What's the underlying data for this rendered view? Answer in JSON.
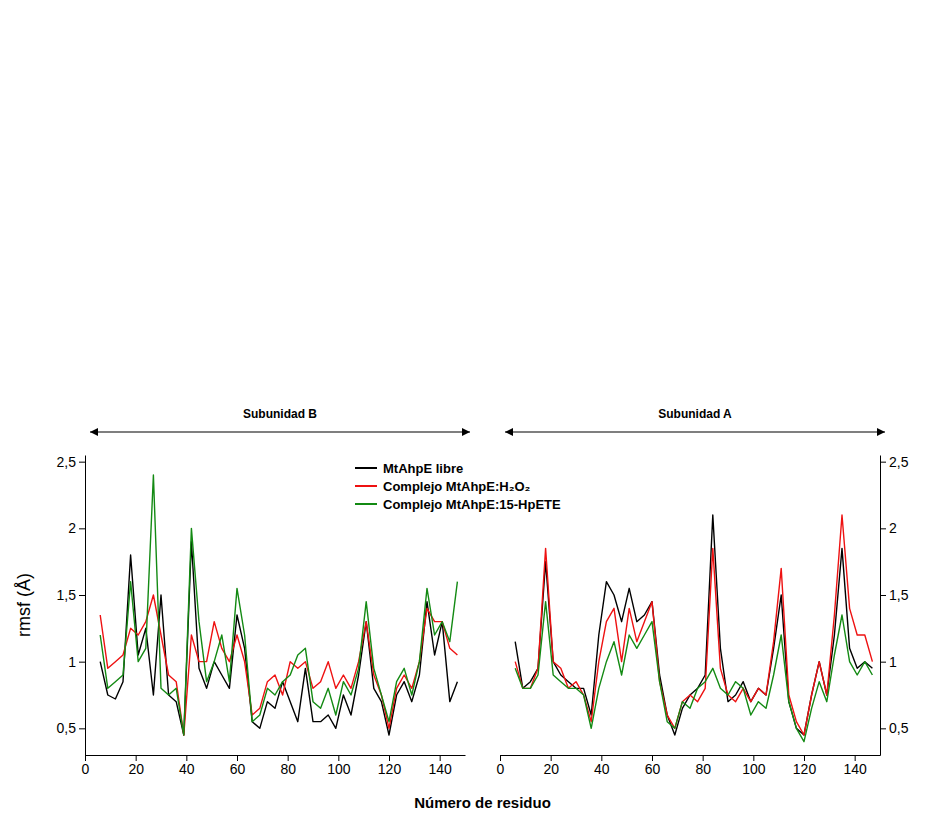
{
  "chart_data": [
    {
      "type": "line",
      "title": "Subunidad B",
      "ylabel": "rmsf (Å)",
      "xlabel": "Número de residuo",
      "legend": "top",
      "xlim": [
        0,
        150
      ],
      "xticks": [
        0,
        20,
        40,
        60,
        80,
        100,
        120,
        140
      ],
      "ylim": [
        0.3,
        2.55
      ],
      "yticks": [
        {
          "value": 0.5,
          "label": "0,5"
        },
        1,
        {
          "value": 1.5,
          "label": "1,5"
        },
        2,
        {
          "value": 2.5,
          "label": "2,5"
        }
      ],
      "x": [
        6,
        9,
        12,
        15,
        18,
        21,
        24,
        27,
        30,
        33,
        36,
        39,
        42,
        45,
        48,
        51,
        54,
        57,
        60,
        63,
        66,
        69,
        72,
        75,
        78,
        81,
        84,
        87,
        90,
        93,
        96,
        99,
        102,
        105,
        108,
        111,
        114,
        117,
        120,
        123,
        126,
        129,
        132,
        135,
        138,
        141,
        144,
        147
      ],
      "series": [
        {
          "name": "MtAhpE libre",
          "color": "#000000",
          "values": [
            1.0,
            0.75,
            0.72,
            0.85,
            1.8,
            1.05,
            1.25,
            0.75,
            1.5,
            0.75,
            0.7,
            0.45,
            1.9,
            0.95,
            0.8,
            1.0,
            0.9,
            0.8,
            1.35,
            1.1,
            0.55,
            0.5,
            0.7,
            0.65,
            0.85,
            0.7,
            0.55,
            0.95,
            0.55,
            0.55,
            0.6,
            0.5,
            0.75,
            0.6,
            0.9,
            1.3,
            0.8,
            0.7,
            0.45,
            0.75,
            0.85,
            0.7,
            0.9,
            1.45,
            1.05,
            1.3,
            0.7,
            0.85
          ]
        },
        {
          "name": "Complejo MtAhpE:H₂O₂",
          "color": "#ee1111",
          "values": [
            1.35,
            0.95,
            1.0,
            1.05,
            1.25,
            1.2,
            1.3,
            1.5,
            1.2,
            0.9,
            0.85,
            0.45,
            1.2,
            1.0,
            1.0,
            1.3,
            1.1,
            1.0,
            1.2,
            1.0,
            0.6,
            0.65,
            0.85,
            0.9,
            0.75,
            1.0,
            0.95,
            1.0,
            0.8,
            0.85,
            1.0,
            0.8,
            0.9,
            0.8,
            1.0,
            1.3,
            0.9,
            0.75,
            0.5,
            0.8,
            0.9,
            0.8,
            1.0,
            1.4,
            1.3,
            1.3,
            1.1,
            1.05
          ]
        },
        {
          "name": "Complejo MtAhpE:15-HpETE",
          "color": "#138a13",
          "values": [
            1.2,
            0.8,
            0.85,
            0.9,
            1.6,
            1.0,
            1.1,
            2.4,
            0.8,
            0.75,
            0.8,
            0.45,
            2.0,
            1.3,
            0.85,
            1.0,
            1.2,
            0.85,
            1.55,
            1.2,
            0.55,
            0.6,
            0.8,
            0.75,
            0.85,
            0.9,
            1.05,
            1.1,
            0.7,
            0.65,
            0.8,
            0.6,
            0.85,
            0.75,
            0.95,
            1.45,
            0.95,
            0.75,
            0.55,
            0.85,
            0.95,
            0.75,
            1.0,
            1.55,
            1.2,
            1.3,
            1.15,
            1.6
          ]
        }
      ]
    },
    {
      "type": "line",
      "title": "Subunidad A",
      "xlim": [
        0,
        150
      ],
      "xticks": [
        0,
        20,
        40,
        60,
        80,
        100,
        120,
        140
      ],
      "ylim": [
        0.3,
        2.55
      ],
      "yticks": [
        {
          "value": 0.5,
          "label": "0,5"
        },
        1,
        {
          "value": 1.5,
          "label": "1,5"
        },
        2,
        {
          "value": 2.5,
          "label": "2,5"
        }
      ],
      "x": [
        6,
        9,
        12,
        15,
        18,
        21,
        24,
        27,
        30,
        33,
        36,
        39,
        42,
        45,
        48,
        51,
        54,
        57,
        60,
        63,
        66,
        69,
        72,
        75,
        78,
        81,
        84,
        87,
        90,
        93,
        96,
        99,
        102,
        105,
        108,
        111,
        114,
        117,
        120,
        123,
        126,
        129,
        132,
        135,
        138,
        141,
        144,
        147
      ],
      "series": [
        {
          "color": "#000000",
          "values": [
            1.15,
            0.8,
            0.85,
            0.95,
            1.75,
            1.0,
            0.9,
            0.85,
            0.8,
            0.8,
            0.6,
            1.2,
            1.6,
            1.5,
            1.3,
            1.55,
            1.3,
            1.35,
            1.45,
            0.9,
            0.6,
            0.45,
            0.65,
            0.75,
            0.8,
            0.9,
            2.1,
            1.1,
            0.7,
            0.75,
            0.85,
            0.7,
            0.8,
            0.75,
            1.1,
            1.5,
            0.7,
            0.5,
            0.45,
            0.75,
            1.0,
            0.75,
            1.2,
            1.85,
            1.1,
            0.95,
            1.0,
            0.95
          ]
        },
        {
          "color": "#ee1111",
          "values": [
            1.0,
            0.8,
            0.8,
            0.95,
            1.85,
            1.0,
            0.95,
            0.8,
            0.85,
            0.75,
            0.55,
            1.0,
            1.3,
            1.4,
            1.0,
            1.4,
            1.15,
            1.3,
            1.45,
            0.85,
            0.6,
            0.5,
            0.7,
            0.75,
            0.7,
            0.8,
            1.85,
            0.95,
            0.75,
            0.7,
            0.8,
            0.7,
            0.8,
            0.75,
            1.15,
            1.7,
            0.75,
            0.55,
            0.45,
            0.75,
            1.0,
            0.75,
            1.35,
            2.1,
            1.4,
            1.2,
            1.2,
            1.0
          ]
        },
        {
          "color": "#138a13",
          "values": [
            0.95,
            0.8,
            0.8,
            0.9,
            1.45,
            0.9,
            0.85,
            0.8,
            0.8,
            0.75,
            0.5,
            0.8,
            1.0,
            1.15,
            0.9,
            1.2,
            1.1,
            1.2,
            1.3,
            0.85,
            0.55,
            0.5,
            0.7,
            0.65,
            0.8,
            0.85,
            0.95,
            0.8,
            0.75,
            0.85,
            0.8,
            0.6,
            0.7,
            0.65,
            0.9,
            1.2,
            0.7,
            0.5,
            0.4,
            0.65,
            0.85,
            0.7,
            1.05,
            1.35,
            1.0,
            0.9,
            1.0,
            0.9
          ]
        }
      ]
    }
  ]
}
